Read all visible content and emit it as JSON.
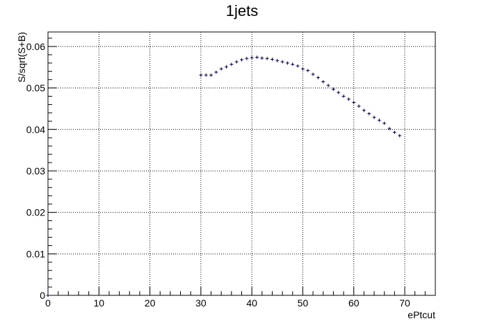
{
  "chart_data": {
    "type": "scatter",
    "title": "1jets",
    "xlabel": "ePtcut",
    "ylabel": "S/sqrt(S+B)",
    "xlim": [
      0,
      76
    ],
    "ylim": [
      0,
      0.0635
    ],
    "grid": true,
    "x_ticks": [
      0,
      10,
      20,
      30,
      40,
      50,
      60,
      70
    ],
    "x_tick_labels": [
      "0",
      "10",
      "20",
      "30",
      "40",
      "50",
      "60",
      "70"
    ],
    "y_ticks": [
      0,
      0.01,
      0.02,
      0.03,
      0.04,
      0.05,
      0.06
    ],
    "y_tick_labels": [
      "0",
      "0.01",
      "0.02",
      "0.03",
      "0.04",
      "0.05",
      "0.06"
    ],
    "marker_color": "#000080",
    "series": [
      {
        "x": [
          0,
          30,
          31,
          32,
          33,
          34,
          35,
          36,
          37,
          38,
          39,
          40,
          41,
          42,
          43,
          44,
          45,
          46,
          47,
          48,
          49,
          50,
          51,
          52,
          53,
          54,
          55,
          56,
          57,
          58,
          59,
          60,
          61,
          62,
          63,
          64,
          65,
          66,
          67,
          68,
          69
        ],
        "y": [
          0,
          0.0531,
          0.0531,
          0.0531,
          0.0538,
          0.0546,
          0.0551,
          0.0557,
          0.0563,
          0.0568,
          0.0571,
          0.0573,
          0.0574,
          0.0572,
          0.0571,
          0.0569,
          0.0566,
          0.0563,
          0.056,
          0.0557,
          0.0553,
          0.0546,
          0.0542,
          0.0533,
          0.0525,
          0.0515,
          0.0506,
          0.0497,
          0.0489,
          0.048,
          0.0473,
          0.0465,
          0.0456,
          0.0446,
          0.0438,
          0.0429,
          0.0422,
          0.0415,
          0.0402,
          0.0393,
          0.0385
        ],
        "yerr": 0.0004
      }
    ]
  }
}
